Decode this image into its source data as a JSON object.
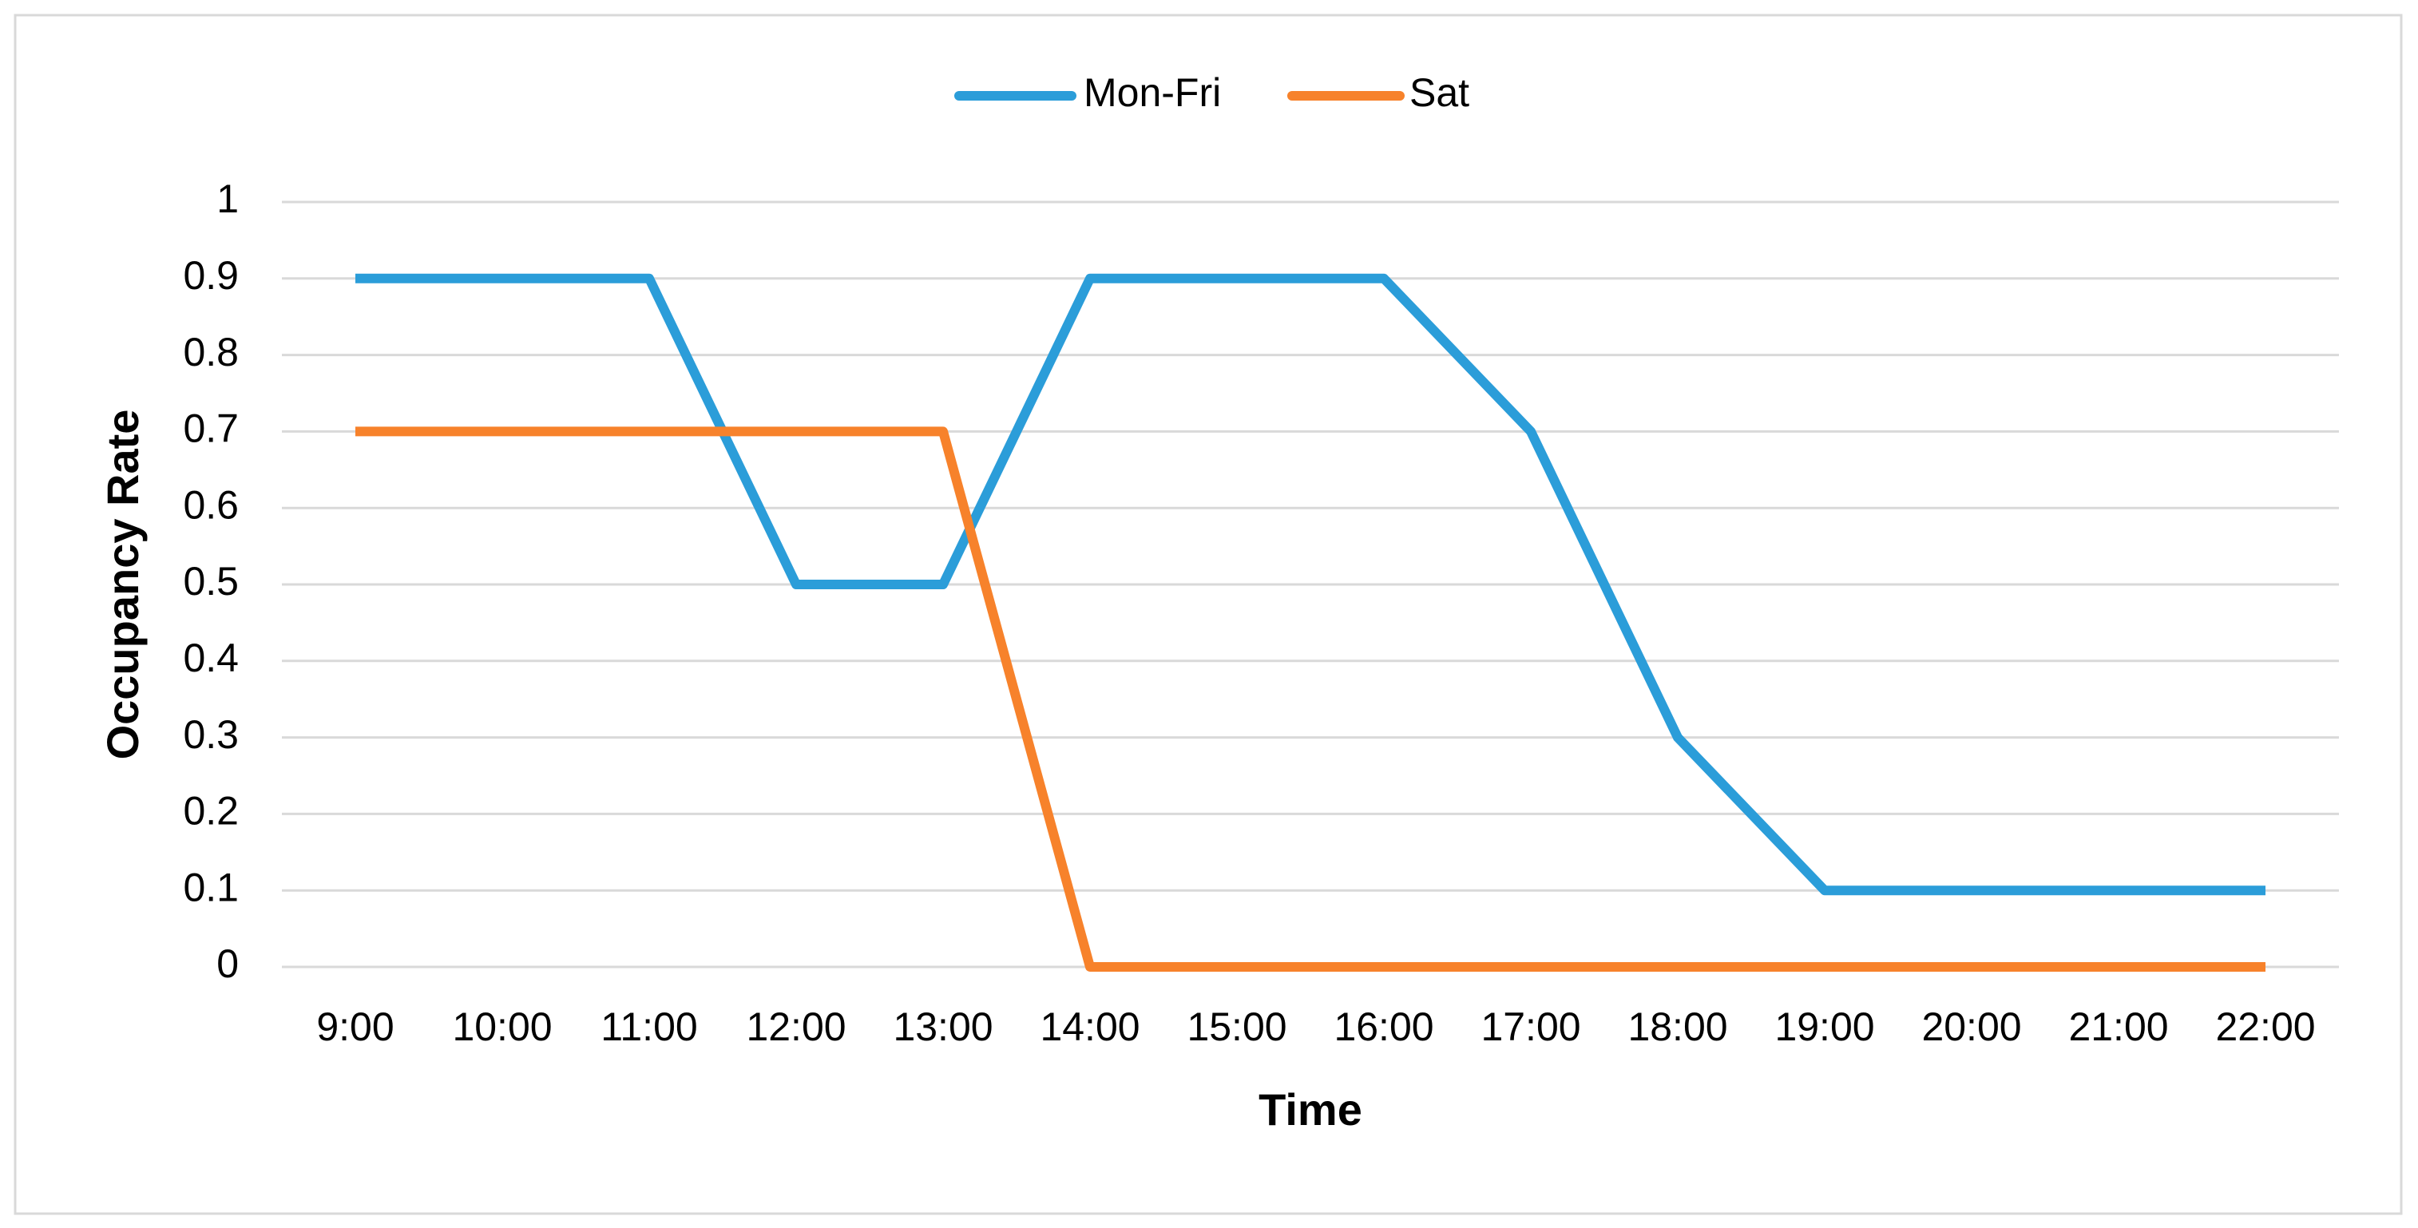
{
  "chart_data": {
    "type": "line",
    "x_label": "Time",
    "y_label": "Occupancy Rate",
    "categories": [
      "9:00",
      "10:00",
      "11:00",
      "12:00",
      "13:00",
      "14:00",
      "15:00",
      "16:00",
      "17:00",
      "18:00",
      "19:00",
      "20:00",
      "21:00",
      "22:00"
    ],
    "series": [
      {
        "name": "Mon-Fri",
        "color": "#2B9DD9",
        "values": [
          0.9,
          0.9,
          0.9,
          0.5,
          0.5,
          0.9,
          0.9,
          0.9,
          0.7,
          0.3,
          0.1,
          0.1,
          0.1,
          0.1
        ]
      },
      {
        "name": "Sat",
        "color": "#F7822B",
        "values": [
          0.7,
          0.7,
          0.7,
          0.7,
          0.7,
          0,
          0,
          0,
          0,
          0,
          0,
          0,
          0,
          0
        ]
      }
    ],
    "ylim": [
      0,
      1
    ],
    "yticks": [
      0,
      0.1,
      0.2,
      0.3,
      0.4,
      0.5,
      0.6,
      0.7,
      0.8,
      0.9,
      1
    ],
    "grid": true,
    "legend": "top"
  }
}
